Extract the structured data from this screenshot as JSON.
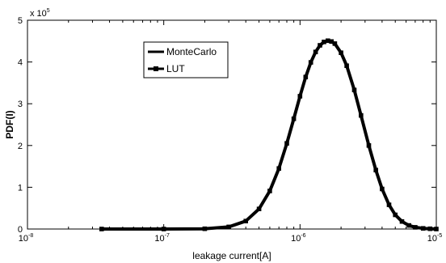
{
  "chart_data": {
    "type": "line",
    "xlabel": "leakage current[A]",
    "ylabel": "PDF(I)",
    "x_scale": "log",
    "xlim": [
      1e-08,
      1e-05
    ],
    "ylim": [
      0,
      500000
    ],
    "x_ticks": [
      {
        "base": "10",
        "exp": "-8",
        "value": 1e-08
      },
      {
        "base": "10",
        "exp": "-7",
        "value": 1e-07
      },
      {
        "base": "10",
        "exp": "-6",
        "value": 1e-06
      },
      {
        "base": "10",
        "exp": "-5",
        "value": 1e-05
      }
    ],
    "y_ticks": [
      "0",
      "1",
      "2",
      "3",
      "4",
      "5"
    ],
    "y_multiplier": {
      "base": "x 10",
      "exp": "5"
    },
    "grid": false,
    "legend_position": "upper-left",
    "series": [
      {
        "name": "MonteCarlo",
        "marker": "none",
        "color": "#000000",
        "x": [
          3.5e-08,
          1e-07,
          2e-07,
          3e-07,
          4e-07,
          5e-07,
          6e-07,
          7e-07,
          8e-07,
          9e-07,
          1e-06,
          1.1e-06,
          1.2e-06,
          1.3e-06,
          1.4e-06,
          1.5e-06,
          1.6e-06,
          1.7e-06,
          1.8e-06,
          2e-06,
          2.2e-06,
          2.5e-06,
          2.8e-06,
          3.2e-06,
          3.6e-06,
          4e-06,
          4.5e-06,
          5e-06,
          5.6e-06,
          6.3e-06,
          7e-06,
          8e-06,
          9e-06,
          1e-05
        ],
        "y": [
          0,
          0,
          500,
          5000,
          19000,
          48000,
          91000,
          145000,
          205000,
          264000,
          318000,
          364000,
          399000,
          424000,
          440000,
          448000,
          451000,
          449000,
          444000,
          422000,
          391000,
          333000,
          272000,
          200000,
          141000,
          96000,
          58000,
          34000,
          18000,
          8500,
          4000,
          1500,
          500,
          0
        ]
      },
      {
        "name": "LUT",
        "marker": "square",
        "color": "#000000",
        "x": [
          3.5e-08,
          1e-07,
          2e-07,
          3e-07,
          4e-07,
          5e-07,
          6e-07,
          7e-07,
          8e-07,
          9e-07,
          1e-06,
          1.1e-06,
          1.2e-06,
          1.3e-06,
          1.4e-06,
          1.5e-06,
          1.6e-06,
          1.7e-06,
          1.8e-06,
          2e-06,
          2.2e-06,
          2.5e-06,
          2.8e-06,
          3.2e-06,
          3.6e-06,
          4e-06,
          4.5e-06,
          5e-06,
          5.6e-06,
          6.3e-06,
          7e-06,
          8e-06,
          9e-06,
          1e-05
        ],
        "y": [
          0,
          0,
          500,
          5000,
          19000,
          48000,
          91000,
          145000,
          205000,
          264000,
          318000,
          364000,
          399000,
          424000,
          440000,
          448000,
          451000,
          449000,
          444000,
          422000,
          391000,
          333000,
          272000,
          200000,
          141000,
          96000,
          58000,
          34000,
          18000,
          8500,
          4000,
          1500,
          500,
          0
        ]
      }
    ]
  }
}
